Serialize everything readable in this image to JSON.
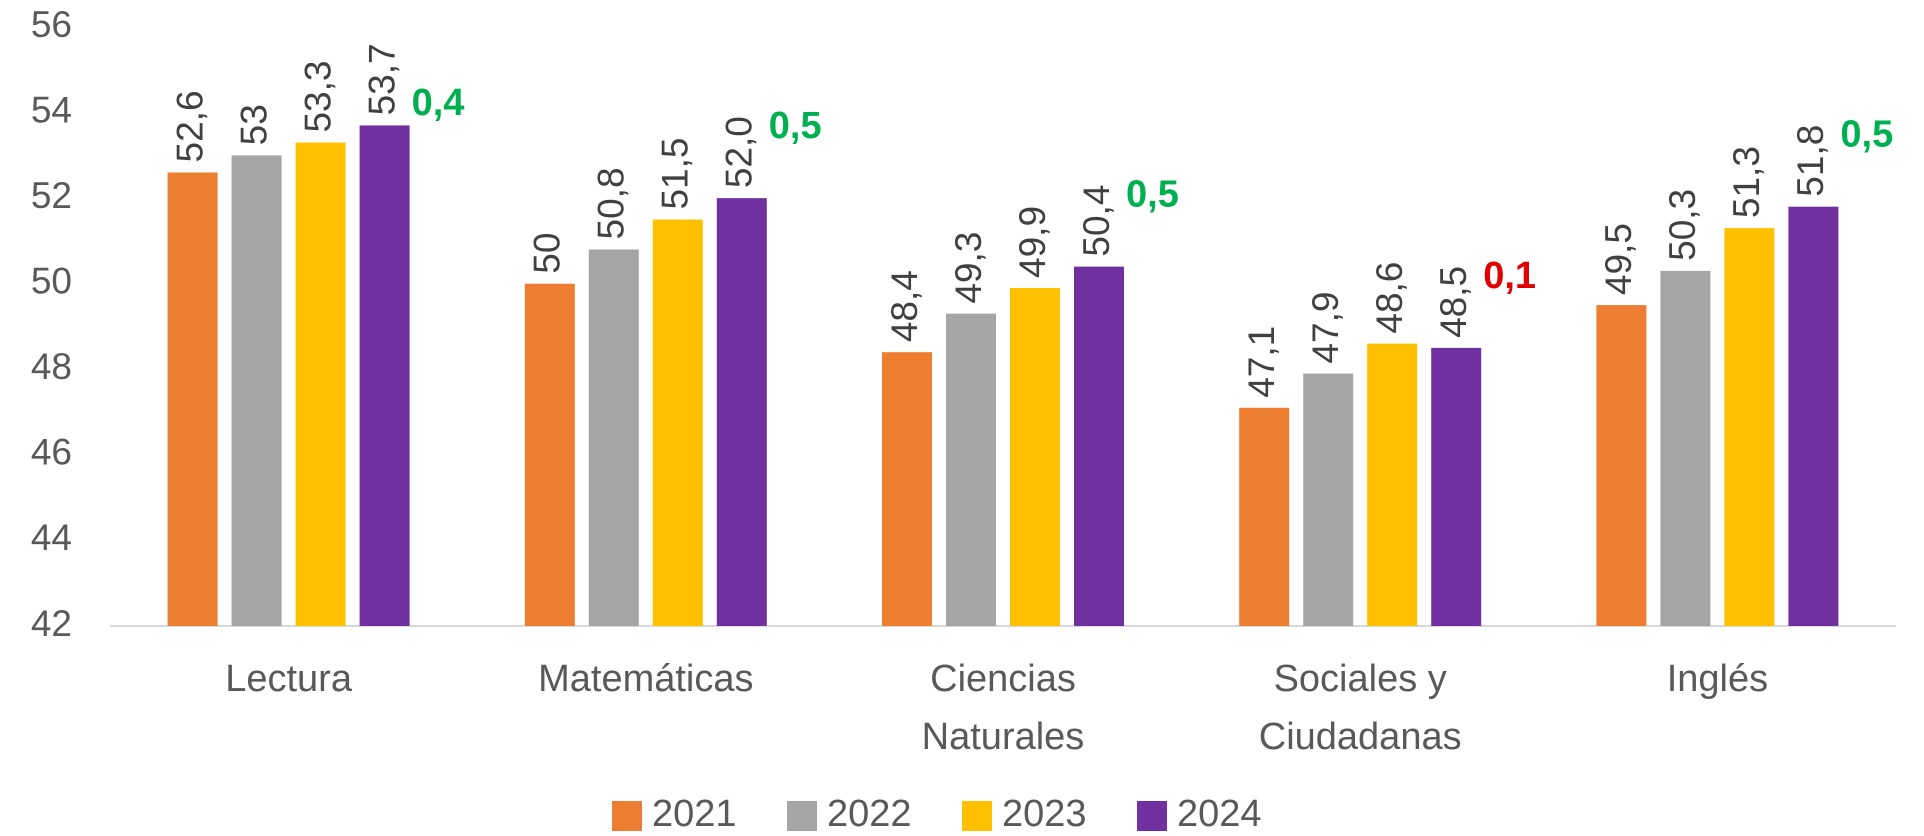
{
  "chart_data": {
    "type": "bar",
    "categories": [
      "Lectura",
      "Matemáticas",
      "Ciencias Naturales",
      "Sociales y Ciudadanas",
      "Inglés"
    ],
    "series": [
      {
        "name": "2021",
        "color": "#ed7d31",
        "values": [
          52.6,
          50,
          48.4,
          47.1,
          49.5
        ],
        "value_labels": [
          "52,6",
          "50",
          "48,4",
          "47,1",
          "49,5"
        ]
      },
      {
        "name": "2022",
        "color": "#a5a5a5",
        "values": [
          53,
          50.8,
          49.3,
          47.9,
          50.3
        ],
        "value_labels": [
          "53",
          "50,8",
          "49,3",
          "47,9",
          "50,3"
        ]
      },
      {
        "name": "2023",
        "color": "#ffc000",
        "values": [
          53.3,
          51.5,
          49.9,
          48.6,
          51.3
        ],
        "value_labels": [
          "53,3",
          "51,5",
          "49,9",
          "48,6",
          "51,3"
        ]
      },
      {
        "name": "2024",
        "color": "#7030a0",
        "values": [
          53.7,
          52.0,
          50.4,
          48.5,
          51.8
        ],
        "value_labels": [
          "53,7",
          "52,0",
          "50,4",
          "48,5",
          "51,8"
        ]
      }
    ],
    "annotations": [
      {
        "text": "0,4",
        "color": "#00b050"
      },
      {
        "text": "0,5",
        "color": "#00b050"
      },
      {
        "text": "0,5",
        "color": "#00b050"
      },
      {
        "text": "0,1",
        "color": "#e00000"
      },
      {
        "text": "0,5",
        "color": "#00b050"
      }
    ],
    "ylim": [
      42,
      56
    ],
    "yticks": [
      42,
      44,
      46,
      48,
      50,
      52,
      54,
      56
    ],
    "grid": false,
    "legend": "bottom"
  }
}
